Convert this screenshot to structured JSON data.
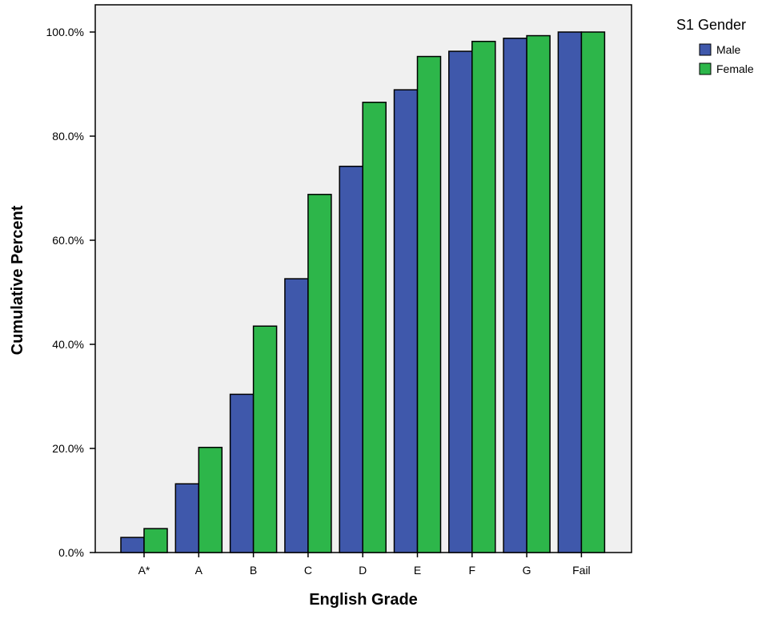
{
  "chart_data": {
    "type": "bar",
    "xlabel": "English Grade",
    "ylabel": "Cumulative Percent",
    "categories": [
      "A*",
      "A",
      "B",
      "C",
      "D",
      "E",
      "F",
      "G",
      "Fail"
    ],
    "series": [
      {
        "name": "Male",
        "color": "#3f58ab",
        "values": [
          2.9,
          13.2,
          30.4,
          52.6,
          74.2,
          88.9,
          96.3,
          98.8,
          100.0
        ]
      },
      {
        "name": "Female",
        "color": "#2db64a",
        "values": [
          4.6,
          20.2,
          43.5,
          68.8,
          86.5,
          95.3,
          98.2,
          99.3,
          100.0
        ]
      }
    ],
    "ylim": [
      0,
      100
    ],
    "yticks": [
      0,
      20,
      40,
      60,
      80,
      100
    ],
    "ytick_labels": [
      "0.0%",
      "20.0%",
      "40.0%",
      "60.0%",
      "80.0%",
      "100.0%"
    ],
    "legend": {
      "title": "S1 Gender",
      "placement": "top-right-outside"
    },
    "grid": false,
    "plot_background": "#f0f0f0"
  }
}
